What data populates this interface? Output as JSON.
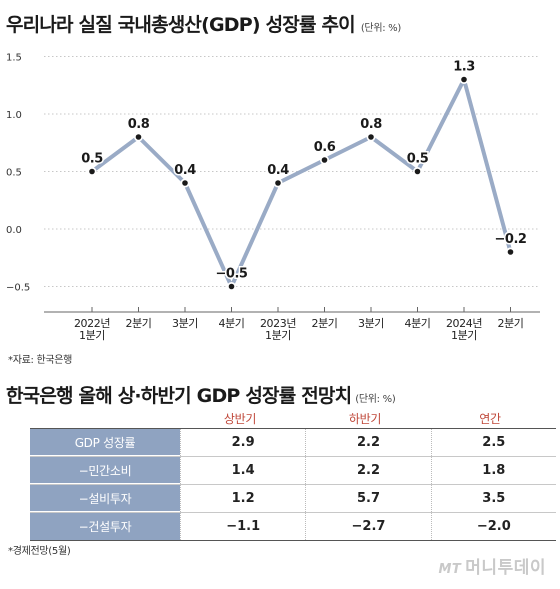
{
  "chart_title": "우리나라 실질 국내총생산(GDP) 성장률 추이",
  "chart_unit": "(단위: %)",
  "chart_data": [
    {
      "type": "line",
      "title": "우리나라 실질 국내총생산(GDP) 성장률 추이",
      "unit": "(단위: %)",
      "categories": [
        "2022년 1분기",
        "2분기",
        "3분기",
        "4분기",
        "2023년 1분기",
        "2분기",
        "3분기",
        "4분기",
        "2024년 1분기",
        "2분기"
      ],
      "category_lines": [
        [
          "2022년",
          "1분기"
        ],
        [
          "2분기"
        ],
        [
          "3분기"
        ],
        [
          "4분기"
        ],
        [
          "2023년",
          "1분기"
        ],
        [
          "2분기"
        ],
        [
          "3분기"
        ],
        [
          "4분기"
        ],
        [
          "2024년",
          "1분기"
        ],
        [
          "2분기"
        ]
      ],
      "values": [
        0.5,
        0.8,
        0.4,
        -0.5,
        0.4,
        0.6,
        0.8,
        0.5,
        1.3,
        -0.2
      ],
      "value_labels": [
        "0.5",
        "0.8",
        "0.4",
        "−0.5",
        "0.4",
        "0.6",
        "0.8",
        "0.5",
        "1.3",
        "−0.2"
      ],
      "yticks": [
        1.5,
        1.0,
        0.5,
        0.0,
        -0.5
      ],
      "ytick_labels": [
        "1.5",
        "1.0",
        "0.5",
        "0.0",
        "−0.5"
      ],
      "ylim": [
        -0.7,
        1.5
      ],
      "grid": true,
      "line_color": "#9aabc6",
      "marker_color": "#1a1a1a"
    },
    {
      "type": "table",
      "title": "한국은행 올해 상·하반기 GDP 성장률 전망치",
      "unit": "(단위: %)",
      "columns": [
        "상반기",
        "하반기",
        "연간"
      ],
      "rows": [
        {
          "label": "GDP 성장률",
          "values": [
            "2.9",
            "2.2",
            "2.5"
          ]
        },
        {
          "label": "−민간소비",
          "values": [
            "1.4",
            "2.2",
            "1.8"
          ]
        },
        {
          "label": "−설비투자",
          "values": [
            "1.2",
            "5.7",
            "3.5"
          ]
        },
        {
          "label": "−건설투자",
          "values": [
            "−1.1",
            "−2.7",
            "−2.0"
          ]
        }
      ]
    }
  ],
  "source1": "*자료: 한국은행",
  "table_title": "한국은행 올해 상·하반기 GDP 성장률 전망치",
  "table_unit": "(단위: %)",
  "table": {
    "columns": [
      "상반기",
      "하반기",
      "연간"
    ],
    "rows": [
      {
        "label": "GDP 성장률",
        "values": [
          "2.9",
          "2.2",
          "2.5"
        ]
      },
      {
        "label": "−민간소비",
        "values": [
          "1.4",
          "2.2",
          "1.8"
        ]
      },
      {
        "label": "−설비투자",
        "values": [
          "1.2",
          "5.7",
          "3.5"
        ]
      },
      {
        "label": "−건설투자",
        "values": [
          "−1.1",
          "−2.7",
          "−2.0"
        ]
      }
    ]
  },
  "source2": "*경제전망(5월)",
  "logo": {
    "mark": "MT",
    "name": "머니투데이"
  },
  "colors": {
    "header_text": "#c04a3c",
    "label_bg": "#8fa3c1",
    "line": "#9aabc6"
  }
}
